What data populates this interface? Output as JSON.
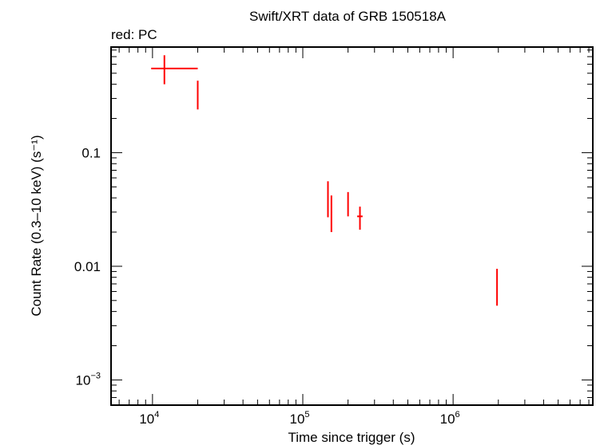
{
  "chart_data": {
    "type": "scatter",
    "title": "Swift/XRT data of GRB 150518A",
    "subtitle": "red: PC",
    "xlabel": "Time since trigger (s)",
    "ylabel": "Count Rate (0.3–10 keV) (s⁻¹)",
    "x_scale": "log",
    "y_scale": "log",
    "xlim": [
      5300,
      8500000
    ],
    "ylim": [
      0.0006,
      0.85
    ],
    "x_tick_labels": [
      {
        "value": 10000,
        "mant": "10",
        "exp": "4"
      },
      {
        "value": 100000,
        "mant": "10",
        "exp": "5"
      },
      {
        "value": 1000000,
        "mant": "10",
        "exp": "6"
      }
    ],
    "y_tick_labels": [
      {
        "value": 0.1,
        "text": "0.1"
      },
      {
        "value": 0.01,
        "text": "0.01"
      },
      {
        "value": 0.001,
        "mant": "10",
        "exp": "−3"
      }
    ],
    "grid": false,
    "series": [
      {
        "color": "#ff0000",
        "points": [
          {
            "x": 12000,
            "xlo": 9800,
            "xhi": 20000,
            "y": 0.55,
            "ylo": 0.4,
            "yhi": 0.72
          },
          {
            "x": 20000,
            "xlo": 19800,
            "xhi": 20200,
            "y": 0.33,
            "ylo": 0.24,
            "yhi": 0.43
          },
          {
            "x": 147000,
            "xlo": 146000,
            "xhi": 148000,
            "y": 0.038,
            "ylo": 0.027,
            "yhi": 0.056
          },
          {
            "x": 155000,
            "xlo": 153500,
            "xhi": 156500,
            "y": 0.03,
            "ylo": 0.02,
            "yhi": 0.042
          },
          {
            "x": 200000,
            "xlo": 198500,
            "xhi": 201500,
            "y": 0.036,
            "ylo": 0.0275,
            "yhi": 0.045
          },
          {
            "x": 240000,
            "xlo": 230000,
            "xhi": 250000,
            "y": 0.0275,
            "ylo": 0.021,
            "yhi": 0.0335
          },
          {
            "x": 1960000,
            "xlo": 1950000,
            "xhi": 1970000,
            "y": 0.0068,
            "ylo": 0.0045,
            "yhi": 0.0095
          }
        ]
      }
    ]
  }
}
